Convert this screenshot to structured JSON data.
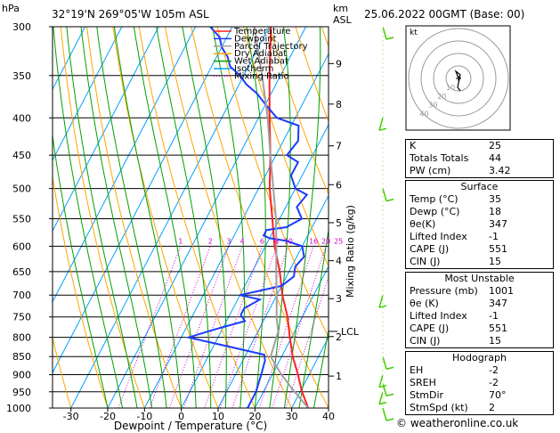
{
  "header": {
    "station": "32°19'N  269°05'W  105m  ASL",
    "datetime": "25.06.2022  00GMT  (Base: 00)",
    "hpa_label": "hPa",
    "km_label": "km",
    "asl_label": "ASL"
  },
  "chart_data": {
    "type": "line",
    "xlabel": "Dewpoint / Temperature (°C)",
    "ylabel_right": "Mixing Ratio (g/kg)",
    "xlim": [
      -35,
      40
    ],
    "x_ticks": [
      -30,
      -20,
      -10,
      0,
      10,
      20,
      30,
      40
    ],
    "pressure_range": [
      300,
      1000
    ],
    "pressure_ticks": [
      300,
      350,
      400,
      450,
      500,
      550,
      600,
      650,
      700,
      750,
      800,
      850,
      900,
      950,
      1000
    ],
    "km_ticks": [
      {
        "label": "9",
        "p": 337
      },
      {
        "label": "8",
        "p": 383
      },
      {
        "label": "7",
        "p": 437
      },
      {
        "label": "6",
        "p": 494
      },
      {
        "label": "5",
        "p": 557
      },
      {
        "label": "4",
        "p": 628
      },
      {
        "label": "3",
        "p": 708
      },
      {
        "label": "2",
        "p": 798
      },
      {
        "label": "1",
        "p": 904
      }
    ],
    "lcl": {
      "label": "LCL",
      "p": 785
    },
    "mixing_ratio_labels": [
      "1",
      "2",
      "3",
      "4",
      "6",
      "8",
      "10",
      "16",
      "20",
      "25"
    ],
    "legend": [
      "Temperature",
      "Dewpoint",
      "Parcel Trajectory",
      "Dry Adiabat",
      "Wet Adiabat",
      "Isotherm",
      "Mixing Ratio"
    ],
    "colors": {
      "temperature": "#ff2020",
      "dewpoint": "#1a3cff",
      "parcel": "#a0a0a0",
      "dry_adiabat": "#ffa500",
      "wet_adiabat": "#00a000",
      "isotherm": "#00a0ff",
      "mixing_ratio": "#cc00cc"
    },
    "series": [
      {
        "name": "Temperature",
        "points": [
          [
            34.5,
            1000
          ],
          [
            30.5,
            950
          ],
          [
            27,
            900
          ],
          [
            23,
            850
          ],
          [
            19.5,
            800
          ],
          [
            16,
            750
          ],
          [
            11.5,
            700
          ],
          [
            7.5,
            650
          ],
          [
            2.5,
            600
          ],
          [
            -2,
            550
          ],
          [
            -7,
            500
          ],
          [
            -11.5,
            450
          ],
          [
            -17,
            400
          ],
          [
            -23,
            350
          ],
          [
            -29.5,
            300
          ]
        ]
      },
      {
        "name": "Dewpoint",
        "points": [
          [
            18,
            1000
          ],
          [
            18,
            950
          ],
          [
            17,
            900
          ],
          [
            16,
            860
          ],
          [
            15,
            845
          ],
          [
            -8,
            800
          ],
          [
            -2,
            780
          ],
          [
            5,
            760
          ],
          [
            3,
            745
          ],
          [
            3,
            730
          ],
          [
            6,
            710
          ],
          [
            0,
            700
          ],
          [
            10,
            680
          ],
          [
            12,
            660
          ],
          [
            11,
            640
          ],
          [
            12,
            620
          ],
          [
            10,
            600
          ],
          [
            5,
            590
          ],
          [
            0,
            585
          ],
          [
            -2,
            580
          ],
          [
            -2,
            570
          ],
          [
            3,
            565
          ],
          [
            6,
            550
          ],
          [
            3,
            530
          ],
          [
            4,
            510
          ],
          [
            0,
            500
          ],
          [
            -3,
            480
          ],
          [
            -3,
            460
          ],
          [
            -7,
            450
          ],
          [
            -6,
            430
          ],
          [
            -8,
            410
          ],
          [
            -15,
            400
          ],
          [
            -18,
            390
          ],
          [
            -21,
            380
          ],
          [
            -24,
            370
          ],
          [
            -28,
            360
          ],
          [
            -31,
            350
          ],
          [
            -35,
            340
          ],
          [
            -37,
            330
          ],
          [
            -40,
            320
          ],
          [
            -42,
            310
          ],
          [
            -46,
            300
          ]
        ]
      },
      {
        "name": "Parcel Trajectory",
        "points": [
          [
            34.5,
            1000
          ],
          [
            28.5,
            950
          ],
          [
            22.5,
            900
          ],
          [
            17,
            850
          ],
          [
            15.5,
            785
          ],
          [
            13,
            750
          ],
          [
            10,
            700
          ],
          [
            6.5,
            650
          ],
          [
            3,
            600
          ],
          [
            -1,
            550
          ],
          [
            -6,
            500
          ],
          [
            -11.5,
            450
          ],
          [
            -17.5,
            400
          ],
          [
            -25,
            350
          ],
          [
            -34,
            300
          ]
        ]
      }
    ],
    "hodograph": {
      "label": "kt",
      "ring_labels": [
        "10",
        "20",
        "30",
        "40"
      ]
    },
    "wind_barbs_p": [
      300,
      400,
      500,
      700,
      850,
      900,
      925,
      950,
      1000
    ]
  },
  "indices": {
    "rows": [
      {
        "label": "K",
        "value": "25"
      },
      {
        "label": "Totals Totals",
        "value": "44"
      },
      {
        "label": "PW (cm)",
        "value": "3.42"
      }
    ]
  },
  "surface": {
    "title": "Surface",
    "rows": [
      {
        "label": "Temp (°C)",
        "value": "35"
      },
      {
        "label": "Dewp (°C)",
        "value": "18"
      },
      {
        "label": "θe(K)",
        "value": "347"
      },
      {
        "label": "Lifted Index",
        "value": "-1"
      },
      {
        "label": "CAPE (J)",
        "value": "551"
      },
      {
        "label": "CIN (J)",
        "value": "15"
      }
    ]
  },
  "most_unstable": {
    "title": "Most Unstable",
    "rows": [
      {
        "label": "Pressure (mb)",
        "value": "1001"
      },
      {
        "label": "θe (K)",
        "value": "347"
      },
      {
        "label": "Lifted Index",
        "value": "-1"
      },
      {
        "label": "CAPE (J)",
        "value": "551"
      },
      {
        "label": "CIN (J)",
        "value": "15"
      }
    ]
  },
  "hodograph_table": {
    "title": "Hodograph",
    "rows": [
      {
        "label": "EH",
        "value": "-2"
      },
      {
        "label": "SREH",
        "value": "-2"
      },
      {
        "label": "StmDir",
        "value": "70°"
      },
      {
        "label": "StmSpd (kt)",
        "value": "2"
      }
    ]
  },
  "copyright": "© weatheronline.co.uk"
}
